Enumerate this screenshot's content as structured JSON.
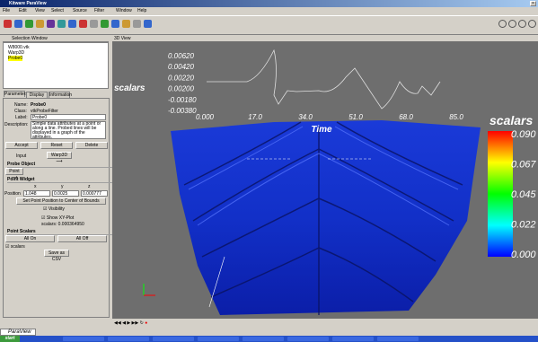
{
  "window": {
    "title": "Kitware ParaView",
    "menu": [
      "File",
      "Edit",
      "View",
      "Select",
      "Source",
      "Filter",
      "Window",
      "Help"
    ]
  },
  "selection_window": {
    "title": "Selection Window",
    "items": [
      "W8000.vtk",
      "Warp3D",
      "Probe0"
    ]
  },
  "tabs": [
    "Parameters",
    "Display",
    "Information"
  ],
  "properties": {
    "name_label": "Name:",
    "name": "Probe0",
    "class_label": "Class:",
    "class": "vtkProbeFilter",
    "label_label": "Label:",
    "label": "Probe0",
    "description_label": "Description:",
    "description": "Simple data attributes at a point or along a line. Probed lines will be displayed in a graph of the attributes."
  },
  "buttons": [
    "Accept",
    "Reset",
    "Delete"
  ],
  "input": {
    "label": "Input",
    "value": "Warp3D"
  },
  "probe_object": {
    "title": "Probe Object",
    "value": "Point"
  },
  "point_widget": {
    "title": "Point Widget",
    "axes": [
      "x",
      "y",
      "z"
    ],
    "position_label": "Position",
    "position": [
      "1.048",
      "0.0025",
      "0.000777"
    ],
    "center_button": "Set Point Position to Center of Bounds",
    "visibility": "Visibility"
  },
  "show_xy_plot": "Show XY-Plot",
  "probe_result": "scalars: 0.000364950",
  "point_scalars": {
    "title": "Point Scalars",
    "all_on": "All On",
    "all_off": "All Off",
    "array": "scalars",
    "save": "Save as CSV"
  },
  "view": {
    "title": "3D View",
    "plot": {
      "ylabel": "scalars",
      "xlabel": "Time",
      "yticks": [
        "0.00620",
        "0.00420",
        "0.00220",
        "0.00200",
        "-0.00180",
        "-0.00380"
      ],
      "xticks": [
        "0.000",
        "17.0",
        "34.0",
        "51.0",
        "68.0",
        "85.0"
      ]
    },
    "colorbar": {
      "title": "scalars",
      "labels": [
        "0.090",
        "0.067",
        "0.045",
        "0.022",
        "0.000"
      ]
    }
  },
  "status": "ParaView",
  "taskbar": {
    "start": "start"
  }
}
